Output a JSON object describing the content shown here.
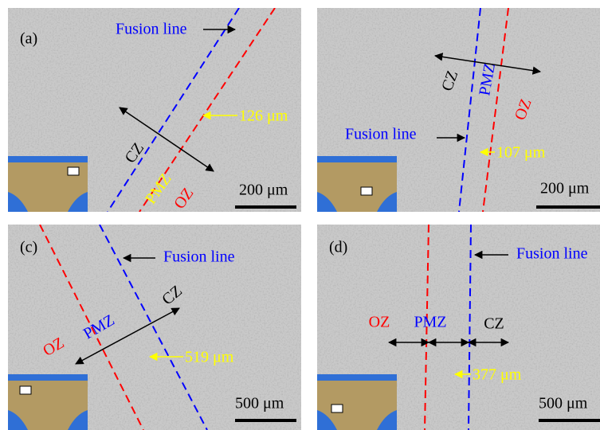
{
  "panels": [
    {
      "label": "(a)",
      "fusion_line": "Fusion line",
      "cz": "CZ",
      "pmz": "PMZ",
      "oz": "OZ",
      "width": "126 μm",
      "scale_bar": "200 μm"
    },
    {
      "fusion_line": "Fusion line",
      "cz": "CZ",
      "pmz": "PMZ",
      "oz": "OZ",
      "width": "107 μm",
      "scale_bar": "200 μm"
    },
    {
      "label": "(c)",
      "fusion_line": "Fusion line",
      "cz": "CZ",
      "pmz": "PMZ",
      "oz": "OZ",
      "width": "519 μm",
      "scale_bar": "500 μm"
    },
    {
      "label": "(d)",
      "fusion_line": "Fusion line",
      "cz": "CZ",
      "pmz": "PMZ",
      "oz": "OZ",
      "width": "377 μm",
      "scale_bar": "500 μm"
    }
  ]
}
